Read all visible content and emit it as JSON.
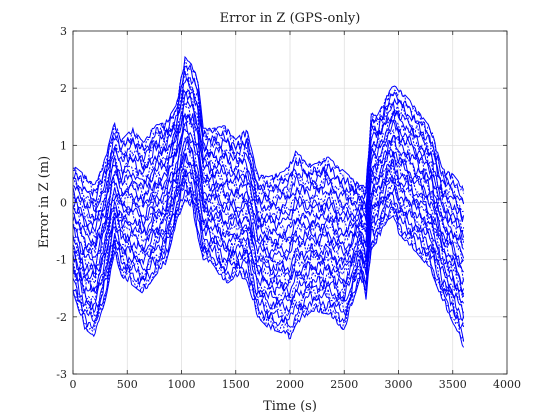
{
  "chart_data": {
    "type": "line",
    "title": "Error in Z (GPS-only)",
    "xlabel": "Time (s)",
    "ylabel": "Error in Z (m)",
    "xlim": [
      0,
      4000
    ],
    "ylim": [
      -3,
      3
    ],
    "xticks": [
      "0",
      "500",
      "1000",
      "1500",
      "2000",
      "2500",
      "3000",
      "3500",
      "4000"
    ],
    "yticks": [
      "-3",
      "-2",
      "-1",
      "0",
      "1",
      "2",
      "3"
    ],
    "grid": true,
    "legend": "none",
    "series_color": "#0000ff",
    "series_description": "Many overlaid Monte Carlo error runs plotted from t = 0 to 3600 s",
    "envelope": {
      "x": [
        0,
        100,
        200,
        300,
        380,
        450,
        550,
        650,
        750,
        850,
        950,
        1030,
        1100,
        1150,
        1200,
        1300,
        1400,
        1500,
        1600,
        1700,
        1800,
        1950,
        2000,
        2050,
        2200,
        2350,
        2500,
        2650,
        2700,
        2750,
        2800,
        2900,
        2950,
        3000,
        3100,
        3200,
        3300,
        3400,
        3500,
        3600
      ],
      "upper": [
        0.65,
        0.5,
        0.3,
        0.8,
        1.4,
        1.1,
        1.3,
        1.05,
        1.35,
        1.4,
        1.7,
        2.55,
        2.4,
        2.2,
        1.3,
        1.3,
        1.35,
        1.1,
        1.3,
        0.5,
        0.45,
        0.55,
        0.7,
        0.9,
        0.65,
        0.8,
        0.55,
        0.3,
        0.3,
        1.6,
        1.5,
        1.9,
        2.05,
        2.0,
        1.8,
        1.55,
        1.3,
        0.6,
        0.5,
        0.25
      ],
      "lower": [
        -1.55,
        -2.2,
        -2.35,
        -1.7,
        -0.9,
        -1.3,
        -1.45,
        -1.6,
        -1.3,
        -1.1,
        -0.4,
        0.05,
        -0.1,
        -0.6,
        -1.0,
        -1.1,
        -1.45,
        -1.3,
        -1.35,
        -2.0,
        -2.2,
        -2.3,
        -2.4,
        -2.15,
        -1.9,
        -1.95,
        -2.25,
        -1.3,
        -1.7,
        -0.8,
        -0.7,
        -0.3,
        -0.25,
        -0.55,
        -0.75,
        -0.95,
        -1.2,
        -1.7,
        -2.1,
        -2.55
      ]
    },
    "num_runs": 30
  }
}
